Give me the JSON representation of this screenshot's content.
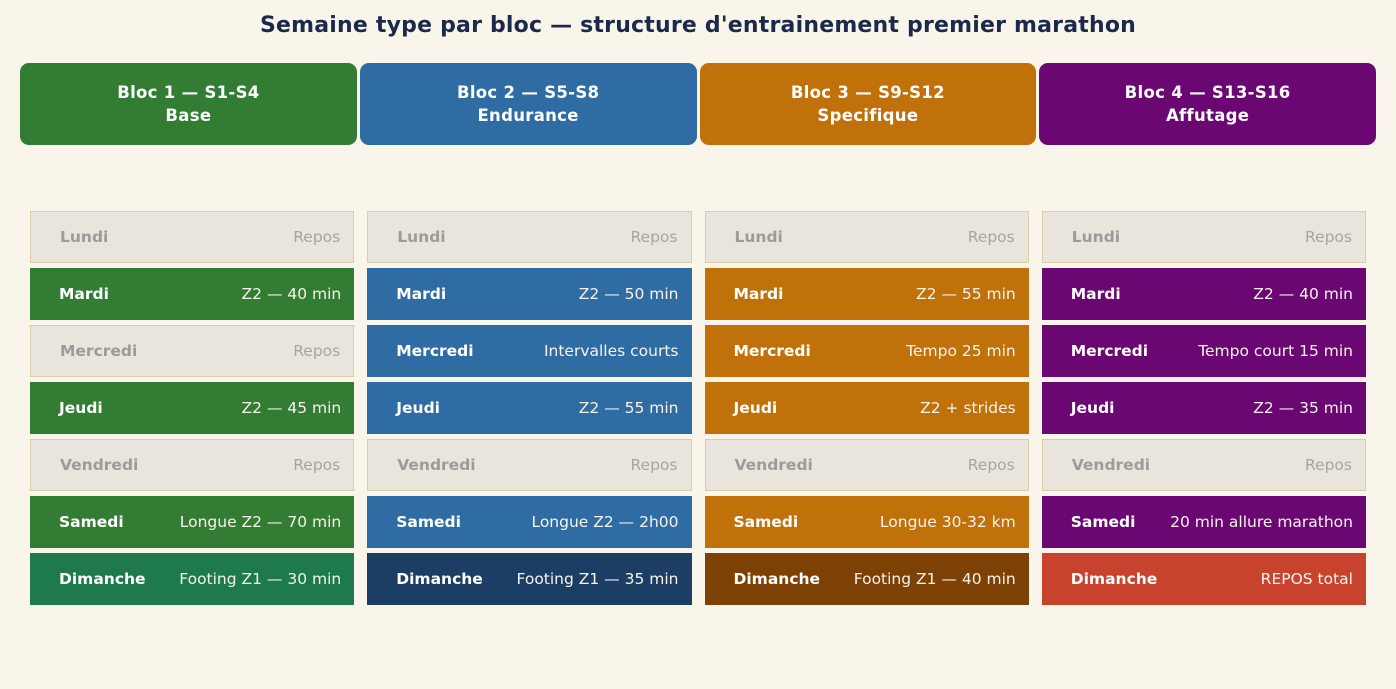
{
  "title": "Semaine type par bloc — structure d'entrainement premier marathon",
  "colors": {
    "background": "#faf5ea",
    "title_text": "#1b2a4a",
    "rest_background": "#e9e5dc",
    "rest_border": "#d8cfa8",
    "rest_text": "#9b9b9b",
    "bloc1_green": "#327d33",
    "bloc2_blue": "#2f6ca3",
    "bloc3_orange": "#c1710a",
    "bloc4_purple": "#6b0772",
    "sunday1_green": "#1e7a4c",
    "sunday2_navy": "#1c3e64",
    "sunday3_brown": "#7d4105",
    "sunday4_red": "#c7432e"
  },
  "blocs": [
    {
      "label": "Bloc 1 — S1-S4",
      "name": "Base",
      "color": "#327d33",
      "days": [
        {
          "day": "Lundi",
          "value": "Repos",
          "type": "rest"
        },
        {
          "day": "Mardi",
          "value": "Z2 — 40 min",
          "type": "work",
          "color": "#327d33"
        },
        {
          "day": "Mercredi",
          "value": "Repos",
          "type": "rest"
        },
        {
          "day": "Jeudi",
          "value": "Z2 — 45 min",
          "type": "work",
          "color": "#327d33"
        },
        {
          "day": "Vendredi",
          "value": "Repos",
          "type": "rest"
        },
        {
          "day": "Samedi",
          "value": "Longue Z2 — 70 min",
          "type": "work",
          "color": "#327d33"
        },
        {
          "day": "Dimanche",
          "value": "Footing Z1 — 30 min",
          "type": "work",
          "color": "#1e7a4c"
        }
      ]
    },
    {
      "label": "Bloc 2 — S5-S8",
      "name": "Endurance",
      "color": "#2f6ca3",
      "days": [
        {
          "day": "Lundi",
          "value": "Repos",
          "type": "rest"
        },
        {
          "day": "Mardi",
          "value": "Z2 — 50 min",
          "type": "work",
          "color": "#2f6ca3"
        },
        {
          "day": "Mercredi",
          "value": "Intervalles courts",
          "type": "work",
          "color": "#2f6ca3"
        },
        {
          "day": "Jeudi",
          "value": "Z2 — 55 min",
          "type": "work",
          "color": "#2f6ca3"
        },
        {
          "day": "Vendredi",
          "value": "Repos",
          "type": "rest"
        },
        {
          "day": "Samedi",
          "value": "Longue Z2 — 2h00",
          "type": "work",
          "color": "#2f6ca3"
        },
        {
          "day": "Dimanche",
          "value": "Footing Z1 — 35 min",
          "type": "work",
          "color": "#1c3e64"
        }
      ]
    },
    {
      "label": "Bloc 3 — S9-S12",
      "name": "Specifique",
      "color": "#c1710a",
      "days": [
        {
          "day": "Lundi",
          "value": "Repos",
          "type": "rest"
        },
        {
          "day": "Mardi",
          "value": "Z2 — 55 min",
          "type": "work",
          "color": "#c1710a"
        },
        {
          "day": "Mercredi",
          "value": "Tempo 25 min",
          "type": "work",
          "color": "#c1710a"
        },
        {
          "day": "Jeudi",
          "value": "Z2 + strides",
          "type": "work",
          "color": "#c1710a"
        },
        {
          "day": "Vendredi",
          "value": "Repos",
          "type": "rest"
        },
        {
          "day": "Samedi",
          "value": "Longue 30-32 km",
          "type": "work",
          "color": "#c1710a"
        },
        {
          "day": "Dimanche",
          "value": "Footing Z1 — 40 min",
          "type": "work",
          "color": "#7d4105"
        }
      ]
    },
    {
      "label": "Bloc 4 — S13-S16",
      "name": "Affutage",
      "color": "#6b0772",
      "days": [
        {
          "day": "Lundi",
          "value": "Repos",
          "type": "rest"
        },
        {
          "day": "Mardi",
          "value": "Z2 — 40 min",
          "type": "work",
          "color": "#6b0772"
        },
        {
          "day": "Mercredi",
          "value": "Tempo court 15 min",
          "type": "work",
          "color": "#6b0772"
        },
        {
          "day": "Jeudi",
          "value": "Z2 — 35 min",
          "type": "work",
          "color": "#6b0772"
        },
        {
          "day": "Vendredi",
          "value": "Repos",
          "type": "rest"
        },
        {
          "day": "Samedi",
          "value": "20 min allure marathon",
          "type": "work",
          "color": "#6b0772"
        },
        {
          "day": "Dimanche",
          "value": "REPOS total",
          "type": "work",
          "color": "#c7432e"
        }
      ]
    }
  ]
}
